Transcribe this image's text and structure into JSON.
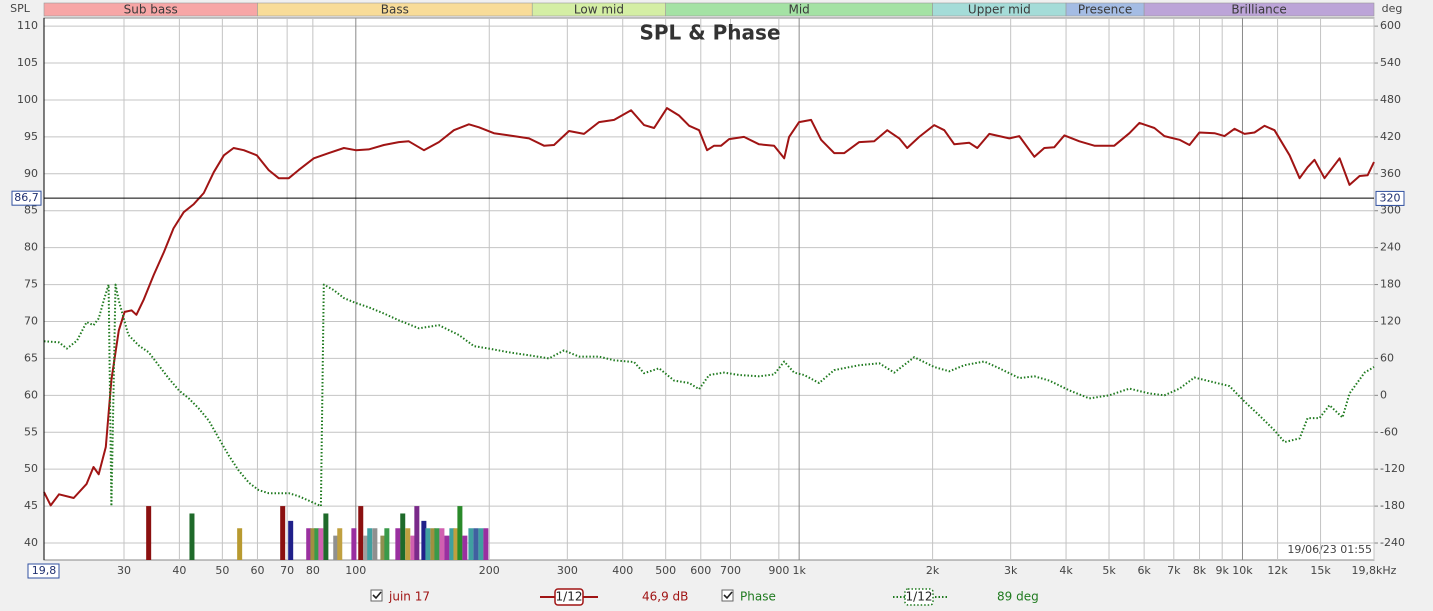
{
  "chart_data": {
    "type": "line",
    "title": "SPL & Phase",
    "ylabel": "SPL",
    "y2label": "deg",
    "log_x": true,
    "grid": true,
    "xlim": [
      19.8,
      19800
    ],
    "xticks": [
      30,
      40,
      50,
      60,
      70,
      80,
      100,
      200,
      300,
      400,
      500,
      600,
      700,
      900,
      {
        "value": 1000,
        "label": "1k"
      },
      {
        "value": 2000,
        "label": "2k"
      },
      {
        "value": 3000,
        "label": "3k"
      },
      {
        "value": 4000,
        "label": "4k"
      },
      {
        "value": 5000,
        "label": "5k"
      },
      {
        "value": 6000,
        "label": "6k"
      },
      {
        "value": 7000,
        "label": "7k"
      },
      {
        "value": 8000,
        "label": "8k"
      },
      {
        "value": 9000,
        "label": "9k"
      },
      {
        "value": 10000,
        "label": "10k"
      },
      {
        "value": 12000,
        "label": "12k"
      },
      {
        "value": 15000,
        "label": "15k"
      },
      {
        "value": 19800,
        "label": "19,8kHz"
      }
    ],
    "ylim": [
      37.7,
      111.1
    ],
    "yticks": [
      40,
      45,
      50,
      55,
      60,
      65,
      70,
      75,
      80,
      85,
      90,
      95,
      100,
      105,
      110
    ],
    "y2lim": [
      -267.6,
      613.2
    ],
    "y2ticks": [
      -240,
      -180,
      -120,
      -60,
      0,
      60,
      120,
      180,
      240,
      300,
      360,
      420,
      480,
      540,
      600
    ],
    "cursor_x": {
      "value": 19.8,
      "label": "19,8"
    },
    "cursor_y": {
      "value": 86.7,
      "label": "86,7"
    },
    "cursor_y2": 320,
    "timestamp": "19/06/23 01:55",
    "bands": [
      {
        "name": "Sub bass",
        "from": 19.8,
        "to": 60,
        "color": "#f7a6a6"
      },
      {
        "name": "Bass",
        "from": 60,
        "to": 250,
        "color": "#f8dc98"
      },
      {
        "name": "Low mid",
        "from": 250,
        "to": 500,
        "color": "#d4eea4"
      },
      {
        "name": "Mid",
        "from": 500,
        "to": 2000,
        "color": "#a4e2a4"
      },
      {
        "name": "Upper mid",
        "from": 2000,
        "to": 4000,
        "color": "#a4dcd8"
      },
      {
        "name": "Presence",
        "from": 4000,
        "to": 6000,
        "color": "#a4bce4"
      },
      {
        "name": "Brilliance",
        "from": 6000,
        "to": 19800,
        "color": "#bca4d8"
      }
    ],
    "series": [
      {
        "name": "juin 17",
        "color": "#a01414",
        "smoothing": "1/12",
        "readout": "46,9 dB",
        "x": [
          19.8,
          20.5,
          21.4,
          23.1,
          24.7,
          25.6,
          26.3,
          27.3,
          28.1,
          29.2,
          30.1,
          31.2,
          32.0,
          33.2,
          35.0,
          36.9,
          38.8,
          40.9,
          43.1,
          45.4,
          47.8,
          50.4,
          53.0,
          55.9,
          59.8,
          63.6,
          67.0,
          70.6,
          74.3,
          80.4,
          86.9,
          94.0,
          100,
          106.9,
          115.7,
          125.0,
          131.7,
          142.4,
          154.0,
          166.4,
          179.9,
          189.6,
          204.9,
          227.3,
          245.8,
          265.8,
          279.9,
          302.6,
          327.2,
          353.7,
          382.4,
          417.8,
          446.9,
          470.8,
          503.5,
          535.9,
          564.9,
          594.9,
          620.1,
          643.1,
          666.9,
          695.0,
          751.0,
          812.3,
          878.0,
          925.1,
          949.3,
          1000,
          1064,
          1121,
          1200,
          1264,
          1366,
          1477,
          1580,
          1682,
          1753,
          1866,
          2017,
          2125,
          2239,
          2420,
          2522,
          2685,
          2979,
          3138,
          3393,
          3573,
          3764,
          3965,
          4287,
          4634,
          5140,
          5558,
          5855,
          6329,
          6667,
          7209,
          7594,
          7996,
          8646,
          9108,
          9594,
          10104,
          10643,
          11212,
          11810,
          12770,
          13452,
          14022,
          14540,
          15315,
          16558,
          17438,
          18370,
          19153,
          19800
        ],
        "values": [
          46.9,
          45.1,
          46.6,
          46.1,
          48.0,
          50.3,
          49.3,
          53.0,
          62.1,
          68.8,
          71.3,
          71.5,
          70.9,
          72.9,
          76.3,
          79.4,
          82.6,
          84.8,
          85.9,
          87.4,
          90.2,
          92.5,
          93.5,
          93.2,
          92.5,
          90.5,
          89.4,
          89.4,
          90.5,
          92.1,
          92.8,
          93.5,
          93.2,
          93.3,
          93.9,
          94.3,
          94.4,
          93.2,
          94.3,
          95.9,
          96.7,
          96.3,
          95.5,
          95.1,
          94.8,
          93.8,
          93.9,
          95.8,
          95.4,
          97.0,
          97.3,
          98.6,
          96.6,
          96.2,
          98.9,
          97.9,
          96.5,
          95.9,
          93.2,
          93.8,
          93.8,
          94.7,
          95.0,
          94.0,
          93.8,
          92.1,
          95.0,
          97.0,
          97.3,
          94.6,
          92.8,
          92.8,
          94.3,
          94.4,
          95.9,
          94.8,
          93.5,
          95.0,
          96.6,
          95.9,
          94.0,
          94.2,
          93.5,
          95.4,
          94.8,
          95.1,
          92.3,
          93.5,
          93.6,
          95.2,
          94.4,
          93.8,
          93.8,
          95.5,
          96.9,
          96.2,
          95.1,
          94.6,
          93.9,
          95.6,
          95.5,
          95.1,
          96.1,
          95.4,
          95.6,
          96.5,
          95.9,
          92.5,
          89.4,
          90.9,
          91.9,
          89.4,
          92.1,
          88.5,
          89.7,
          89.8,
          91.6
        ]
      },
      {
        "name": "Phase",
        "color": "#1f7a1f",
        "axis": "y2",
        "style": "dotted",
        "smoothing": "1/12",
        "readout": "89 deg",
        "x": [
          19.8,
          21.4,
          22.3,
          23.5,
          24.7,
          25.6,
          26.3,
          27.0,
          27.7,
          28.1,
          28.7,
          29.2,
          30.7,
          32.4,
          34.1,
          35.9,
          37.8,
          39.9,
          42.0,
          44.2,
          46.6,
          49.1,
          51.7,
          54.4,
          57.4,
          60.4,
          63.6,
          70.6,
          74.3,
          78.3,
          83.4,
          84.7,
          89.2,
          94.0,
          100,
          106.9,
          115.7,
          125.0,
          138.8,
          154.0,
          170.8,
          184.7,
          199.6,
          221.5,
          245.8,
          272.8,
          294.9,
          318.7,
          353.7,
          382.4,
          424.3,
          446.9,
          483.1,
          522.2,
          564.9,
          594.9,
          626.5,
          677.1,
          732.0,
          812.3,
          878.0,
          925.1,
          974.3,
          1026,
          1109,
          1200,
          1366,
          1516,
          1639,
          1818,
          2017,
          2181,
          2358,
          2616,
          2828,
          3138,
          3393,
          3667,
          4069,
          4514,
          5008,
          5558,
          6167,
          6667,
          7209,
          7791,
          8423,
          9348,
          10104,
          10925,
          11810,
          12441,
          13452,
          14022,
          14922,
          15718,
          16814,
          17438,
          18857,
          19800
        ],
        "values": [
          88,
          86,
          76,
          89,
          119,
          114,
          125,
          154,
          180,
          -180,
          180,
          154,
          98,
          81,
          70,
          49,
          28,
          8,
          -5,
          -21,
          -41,
          -70,
          -98,
          -122,
          -142,
          -154,
          -159,
          -159,
          -164,
          -171,
          -180,
          180,
          171,
          158,
          150,
          143,
          133,
          122,
          109,
          114,
          98,
          80,
          76,
          70,
          65,
          60,
          73,
          63,
          63,
          57,
          54,
          36,
          44,
          24,
          20,
          10,
          33,
          37,
          33,
          31,
          34,
          55,
          37,
          33,
          20,
          41,
          49,
          52,
          37,
          62,
          46,
          39,
          49,
          55,
          44,
          28,
          31,
          24,
          8,
          -5,
          0,
          11,
          3,
          0,
          11,
          29,
          23,
          15,
          -10,
          -33,
          -57,
          -76,
          -70,
          -37,
          -37,
          -16,
          -36,
          3,
          37,
          46
        ]
      }
    ],
    "markers": {
      "x": [
        34.1,
        42.7,
        54.7,
        68.4,
        71.3,
        78.3,
        80.0,
        81.7,
        83.4,
        85.6,
        90.1,
        92.0,
        99.0,
        102.6,
        105.3,
        107.5,
        110.4,
        115.1,
        117.5,
        124.4,
        127.6,
        131.0,
        134.5,
        137.3,
        142.4,
        145.4,
        149.2,
        152.4,
        156.4,
        160.5,
        164.7,
        168.2,
        171.7,
        176.2,
        181.8,
        186.6,
        191.5,
        196.5
      ],
      "values": [
        45,
        44,
        42,
        45,
        43,
        42,
        42,
        42,
        42,
        44,
        41,
        42,
        42,
        45,
        41,
        42,
        42,
        41,
        42,
        42,
        44,
        42,
        41,
        45,
        43,
        42,
        42,
        42,
        42,
        41,
        42,
        42,
        45,
        41,
        42,
        42,
        42,
        42
      ],
      "colors": [
        "#8b1010",
        "#1f6a2a",
        "#b89a30",
        "#8b1010",
        "#20208a",
        "#9a30a0",
        "#a09040",
        "#3a9a4a",
        "#d060b0",
        "#1f6a2a",
        "#909090",
        "#c0a040",
        "#9a30a0",
        "#8b1010",
        "#a0a0a0",
        "#40a0a0",
        "#909090",
        "#909050",
        "#3a9a4a",
        "#9a30a0",
        "#1f6a2a",
        "#c0a040",
        "#d060b0",
        "#7a2a8a",
        "#20208a",
        "#40a0a0",
        "#a09040",
        "#3a9a4a",
        "#d060b0",
        "#9a30a0",
        "#40a0a0",
        "#c0a040",
        "#2a8a2a",
        "#9a30a0",
        "#40a0a0",
        "#4060a0",
        "#40a0a0",
        "#9a30a0"
      ]
    }
  }
}
